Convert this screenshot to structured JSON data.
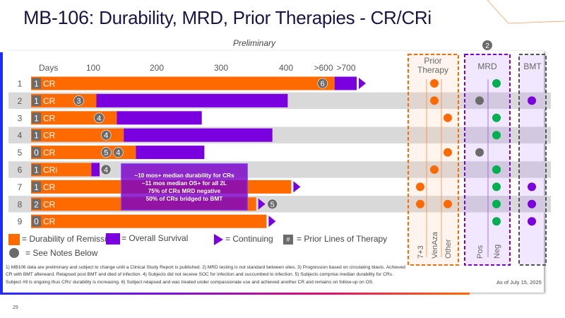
{
  "header": {
    "title_bold": "MB-106:",
    "title_rest": "Durability, MRD, Prior Therapies - CR/CRi",
    "subtitle": "Preliminary"
  },
  "chart_data": {
    "type": "bar",
    "orientation": "horizontal",
    "subtype": "swimmer",
    "xlabel": "Days",
    "x_ticks": [
      {
        "value": 100,
        "label": "100"
      },
      {
        "value": 200,
        "label": "200"
      },
      {
        "value": 300,
        "label": "300"
      },
      {
        "value": 400,
        "label": "400"
      },
      {
        "value": 600,
        "label": ">600"
      },
      {
        "value": 700,
        "label": ">700"
      }
    ],
    "x_axis_break": "after 400",
    "colors": {
      "durability": "#ff6a00",
      "overall_survival": "#7a00e0",
      "note": "#6b6b6b",
      "mrd_neg": "#00b050",
      "bmt": "#7a00e0",
      "prior": "#ff6a00",
      "stripe": "#d9d9d9"
    },
    "subjects": [
      {
        "id": "1",
        "prior_lines": "1",
        "response": "CR",
        "durability_days": 649,
        "os_days": 747,
        "continuing": true,
        "notes": [
          "6"
        ],
        "prior_therapy": [
          "VenAza"
        ],
        "mrd": "Neg",
        "bmt": false
      },
      {
        "id": "2",
        "prior_lines": "1",
        "response": "CR",
        "durability_days": 105,
        "os_days": 409,
        "continuing": false,
        "notes": [
          "3"
        ],
        "prior_therapy": [
          "VenAza"
        ],
        "mrd": "Pos",
        "bmt": true
      },
      {
        "id": "3",
        "prior_lines": "1",
        "response": "CR",
        "durability_days": 137,
        "os_days": 270,
        "continuing": false,
        "notes": [
          "4"
        ],
        "prior_therapy": [
          "Other"
        ],
        "mrd": "Neg",
        "bmt": false
      },
      {
        "id": "4",
        "prior_lines": "1",
        "response": "CR",
        "durability_days": 148,
        "os_days": 379,
        "continuing": false,
        "notes": [
          "4"
        ],
        "prior_therapy": [],
        "mrd": "Neg",
        "bmt": false
      },
      {
        "id": "5",
        "prior_lines": "0",
        "response": "CR",
        "durability_days": 167,
        "os_days": 274,
        "continuing": false,
        "notes": [
          "5",
          "4"
        ],
        "prior_therapy": [
          "Other"
        ],
        "mrd": "Pos",
        "bmt": false
      },
      {
        "id": "6",
        "prior_lines": "1",
        "response": "CRi",
        "durability_days": 97,
        "os_days": 110,
        "continuing": false,
        "notes": [
          "4"
        ],
        "prior_therapy": [
          "VenAza"
        ],
        "mrd": "Neg",
        "bmt": false
      },
      {
        "id": "7",
        "prior_lines": "1",
        "response": "CR",
        "durability_days": 428,
        "os_days": null,
        "continuing": true,
        "notes": [],
        "prior_therapy": [
          "7+3"
        ],
        "mrd": "Neg",
        "bmt": true
      },
      {
        "id": "8",
        "prior_lines": "2",
        "response": "CR",
        "durability_days": 354,
        "os_days": null,
        "continuing": true,
        "notes": [
          "5"
        ],
        "prior_therapy": [
          "7+3",
          "Other"
        ],
        "mrd": "Neg",
        "bmt": true
      },
      {
        "id": "9",
        "prior_lines": "0",
        "response": "CR",
        "durability_days": 370,
        "os_days": null,
        "continuing": true,
        "notes": [],
        "prior_therapy": [],
        "mrd": "Neg",
        "bmt": true
      }
    ],
    "annotation": [
      "~10 mos+ median durability for CRs",
      "~11 mos median OS+ for all 2L",
      "75% of CRs MRD negative",
      "50% of CRs bridged to BMT"
    ],
    "panels": {
      "prior_therapy": {
        "title_line1": "Prior",
        "title_line2": "Therapy",
        "columns": [
          "7+3",
          "VenAza",
          "Other"
        ]
      },
      "mrd": {
        "title": "MRD",
        "note": "2",
        "columns": [
          "Pos",
          "Neg"
        ]
      },
      "bmt": {
        "title": "BMT"
      }
    }
  },
  "legend": {
    "durability": "= Durability of Remission",
    "os": "= Overall Survival",
    "continuing": "= Continuing",
    "prior_lines_symbol": "#",
    "prior_lines": "= Prior Lines of Therapy",
    "notes": "= See Notes Below"
  },
  "footnotes": "1) MB106 data are preliminary and subject to change until a Clinical Study Report is published. 2) MRD testing is not standard between sites. 3) Progression based on circulating blasts. Achieved CR with BMT afterward. Relapsed post BMT and died of infection.  4) Subjects did not receive SOC for infection and succumbed to infection. 5) Subjects comprise median durability for CRs. Subject #9 is ongoing thus CRs' durability is increasing. 6) Subject relapsed and was treated under compassionate use and achieved another CR and remains on follow-up on OS.",
  "as_of": "As of July 15, 2025",
  "page_number": "29"
}
